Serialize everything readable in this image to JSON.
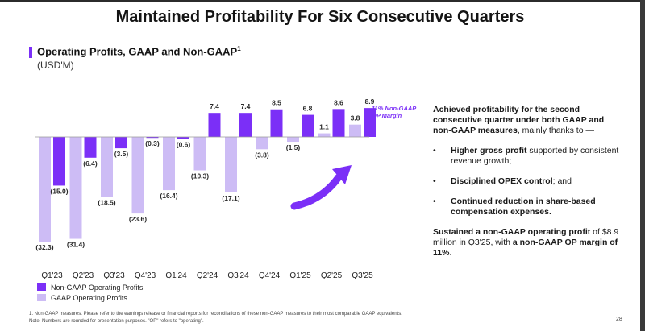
{
  "slide": {
    "title": "Maintained Profitability For Six Consecutive Quarters",
    "page_number": "28"
  },
  "section": {
    "title": "Operating Profits, GAAP and Non-GAAP",
    "title_sup": "1",
    "unit": "(USD'M)"
  },
  "chart_data": {
    "type": "bar",
    "categories": [
      "Q1'23",
      "Q2'23",
      "Q3'23",
      "Q4'23",
      "Q1'24",
      "Q2'24",
      "Q3'24",
      "Q4'24",
      "Q1'25",
      "Q2'25",
      "Q3'25"
    ],
    "series": [
      {
        "name": "Non-GAAP Operating Profits",
        "color": "#7b2ff7",
        "values": [
          -15.0,
          -6.4,
          -3.5,
          -0.3,
          -0.6,
          7.4,
          7.4,
          8.5,
          6.8,
          8.6,
          8.9
        ],
        "labels": [
          "(15.0)",
          "(6.4)",
          "(3.5)",
          "(0.3)",
          "(0.6)",
          "7.4",
          "7.4",
          "8.5",
          "6.8",
          "8.6",
          "8.9"
        ]
      },
      {
        "name": "GAAP Operating Profits",
        "color": "#cdbcf5",
        "values": [
          -32.3,
          -31.4,
          -18.5,
          -23.6,
          -16.4,
          -10.3,
          -17.1,
          -3.8,
          -1.5,
          1.1,
          3.8
        ],
        "labels": [
          "(32.3)",
          "(31.4)",
          "(18.5)",
          "(23.6)",
          "(16.4)",
          "(10.3)",
          "(17.1)",
          "(3.8)",
          "(1.5)",
          "1.1",
          "3.8"
        ]
      }
    ],
    "annotation": "11% Non-GAAP OP Margin",
    "grid": false,
    "legend_position": "bottom-left"
  },
  "right_panel": {
    "intro": "Achieved profitability for the second consecutive quarter under both GAAP and non-GAAP measures",
    "intro_tail": ", mainly thanks to —",
    "bullets": [
      {
        "bold": "Higher gross profit",
        "text": " supported by consistent revenue growth;"
      },
      {
        "bold": "Disciplined OPEX control",
        "text": "; and"
      },
      {
        "bold": "Continued reduction in share-based compensation expenses.",
        "text": ""
      }
    ],
    "summary": {
      "bold1": "Sustained a non-GAAP operating profit",
      "text1": " of $8.9 million in Q3'25, with ",
      "bold2": "a non-GAAP OP margin of 11%",
      "text2": "."
    }
  },
  "footnotes": {
    "line1": "1. Non-GAAP measures. Please refer to the earnings release or financial reports for reconciliations of these non-GAAP measures to their most comparable GAAP equivalents.",
    "line2": "Note: Numbers are rounded for presentation purposes. \"OP\" refers to \"operating\"."
  }
}
